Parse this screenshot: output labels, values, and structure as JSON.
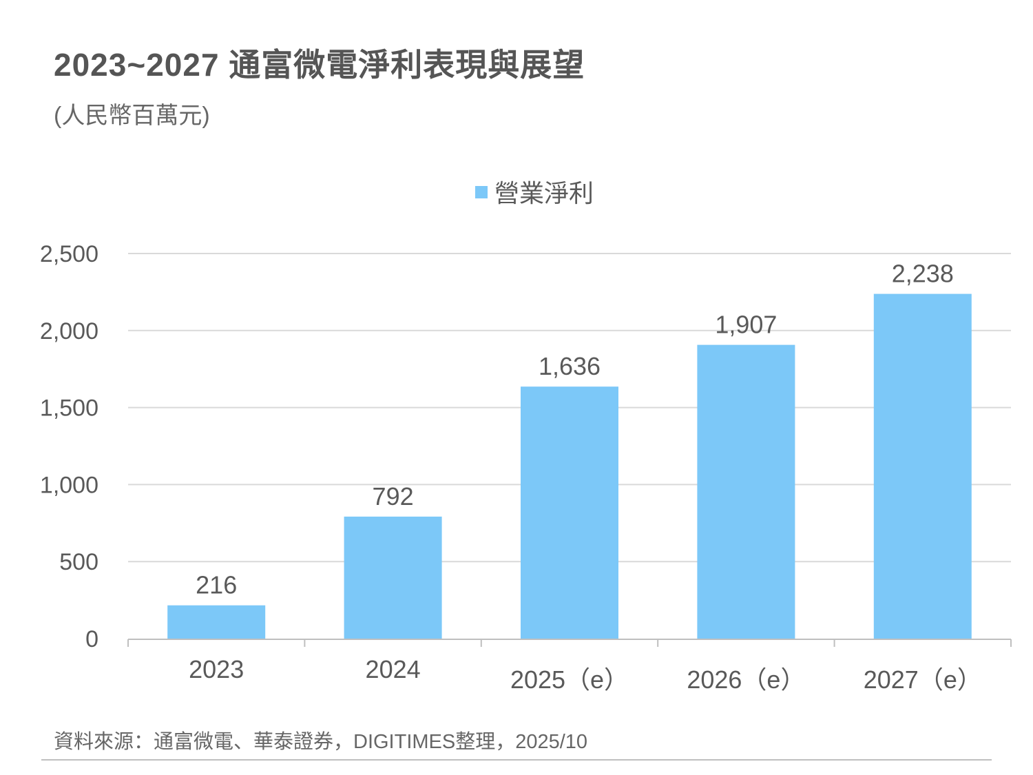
{
  "chart_data": {
    "type": "bar",
    "title": "2023~2027 通富微電淨利表現與展望",
    "subtitle": "(人民幣百萬元)",
    "categories": [
      "2023",
      "2024",
      "2025（e）",
      "2026（e）",
      "2027（e）"
    ],
    "series": [
      {
        "name": "營業淨利",
        "values": [
          216,
          792,
          1636,
          1907,
          2238
        ],
        "color": "#7CC8F8"
      }
    ],
    "data_labels": [
      "216",
      "792",
      "1,636",
      "1,907",
      "2,238"
    ],
    "y_ticks": [
      "0",
      "500",
      "1,000",
      "1,500",
      "2,000",
      "2,500"
    ],
    "y_tick_values": [
      0,
      500,
      1000,
      1500,
      2000,
      2500
    ],
    "ylim": [
      0,
      2500
    ],
    "xlabel": "",
    "ylabel": "",
    "grid": true,
    "legend_position": "top-center",
    "source": "資料來源：通富微電、華泰證券，DIGITIMES整理，2025/10"
  },
  "colors": {
    "bar": "#7CC8F8",
    "grid": "#d9d9d9",
    "axis": "#bfbfbf",
    "text": "#595959",
    "title": "#555555"
  }
}
